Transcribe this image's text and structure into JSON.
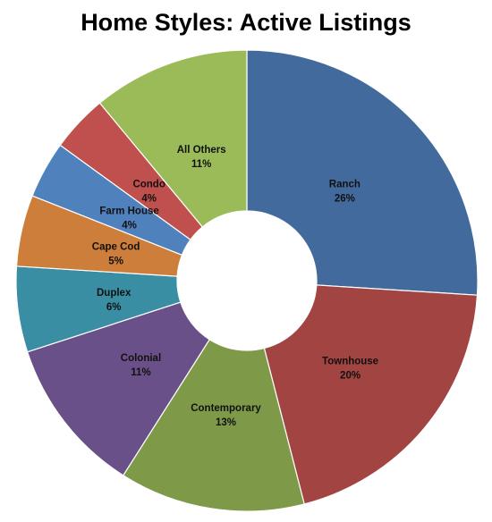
{
  "chart_data": {
    "type": "pie",
    "donut": true,
    "title": "Home Styles:  Active Listings",
    "categories": [
      "Ranch",
      "Townhouse",
      "Contemporary",
      "Colonial",
      "Duplex",
      "Cape Cod",
      "Farm House",
      "Condo",
      "All Others"
    ],
    "values": [
      26,
      20,
      13,
      11,
      6,
      5,
      4,
      4,
      11
    ],
    "labels": [
      "26%",
      "20%",
      "13%",
      "11%",
      "6%",
      "5%",
      "4%",
      "4%",
      "11%"
    ],
    "colors": [
      "#436A9C",
      "#A24442",
      "#7E9A49",
      "#6A5088",
      "#3A8EA3",
      "#CC7E3A",
      "#4F81BD",
      "#C0504D",
      "#9BBB59"
    ],
    "legend": "none",
    "label_position": "inside"
  }
}
